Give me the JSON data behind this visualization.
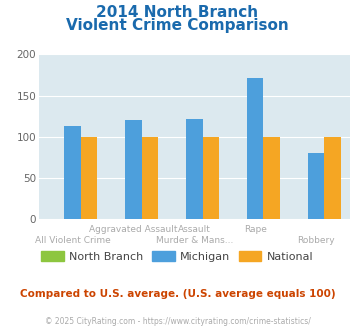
{
  "title_line1": "2014 North Branch",
  "title_line2": "Violent Crime Comparison",
  "north_branch": [
    0,
    0,
    0,
    0,
    0
  ],
  "michigan": [
    113,
    120,
    122,
    172,
    80
  ],
  "national": [
    100,
    100,
    100,
    100,
    100
  ],
  "color_nb": "#8dc63f",
  "color_mi": "#4d9fdc",
  "color_na": "#f5a623",
  "ylim": [
    0,
    200
  ],
  "yticks": [
    0,
    50,
    100,
    150,
    200
  ],
  "bg_color": "#dce9ef",
  "title_color": "#1a6aad",
  "xlabel_color": "#aaaaaa",
  "legend_label_color": "#444444",
  "subtitle_color": "#cc4400",
  "footer_color": "#aaaaaa",
  "subtitle": "Compared to U.S. average. (U.S. average equals 100)",
  "footer": "© 2025 CityRating.com - https://www.cityrating.com/crime-statistics/",
  "cat_top": [
    "",
    "Aggravated Assault",
    "Assault",
    "Rape",
    ""
  ],
  "cat_bot": [
    "All Violent Crime",
    "",
    "Murder & Mans...",
    "",
    "Robbery"
  ]
}
